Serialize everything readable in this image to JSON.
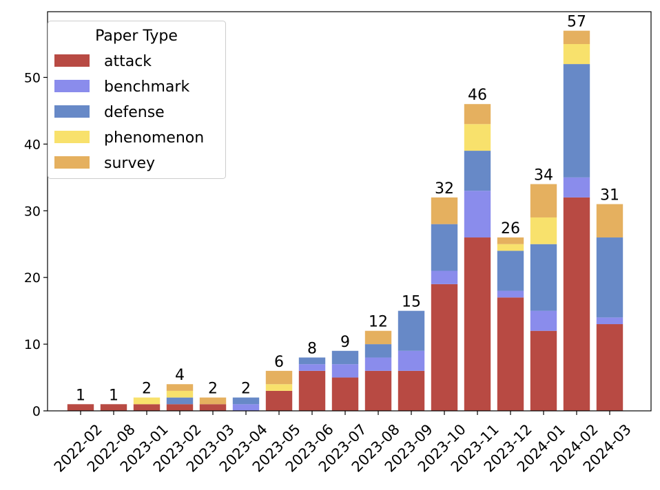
{
  "chart_data": {
    "type": "bar",
    "stacked": true,
    "title": "",
    "xlabel": "",
    "ylabel": "",
    "ylim": [
      0,
      59.85
    ],
    "yticks": [
      0,
      10,
      20,
      30,
      40,
      50
    ],
    "grid": false,
    "legend": {
      "title": "Paper Type",
      "placement": "top-left"
    },
    "categories": [
      "2022-02",
      "2022-08",
      "2023-01",
      "2023-02",
      "2023-03",
      "2023-04",
      "2023-05",
      "2023-06",
      "2023-07",
      "2023-08",
      "2023-09",
      "2023-10",
      "2023-11",
      "2023-12",
      "2024-01",
      "2024-02",
      "2024-03"
    ],
    "series": [
      {
        "name": "attack",
        "color": "#b84a43",
        "values": [
          1,
          1,
          1,
          1,
          1,
          0,
          3,
          6,
          5,
          6,
          6,
          19,
          26,
          17,
          12,
          32,
          13
        ]
      },
      {
        "name": "benchmark",
        "color": "#8a8cec",
        "values": [
          0,
          0,
          0,
          0,
          0,
          1,
          0,
          1,
          2,
          2,
          3,
          2,
          7,
          1,
          3,
          3,
          1
        ]
      },
      {
        "name": "defense",
        "color": "#6789c7",
        "values": [
          0,
          0,
          0,
          1,
          0,
          1,
          0,
          1,
          2,
          2,
          6,
          7,
          6,
          6,
          10,
          17,
          12
        ]
      },
      {
        "name": "phenomenon",
        "color": "#f8e16c",
        "values": [
          0,
          0,
          1,
          1,
          0,
          0,
          1,
          0,
          0,
          0,
          0,
          0,
          4,
          1,
          4,
          3,
          0
        ]
      },
      {
        "name": "survey",
        "color": "#e5b05f",
        "values": [
          0,
          0,
          0,
          1,
          1,
          0,
          2,
          0,
          0,
          2,
          0,
          4,
          3,
          1,
          5,
          2,
          5
        ]
      }
    ],
    "totals": [
      "1",
      "1",
      "2",
      "4",
      "2",
      "2",
      "6",
      "8",
      "9",
      "12",
      "15",
      "32",
      "46",
      "26",
      "34",
      "57",
      "31"
    ]
  }
}
